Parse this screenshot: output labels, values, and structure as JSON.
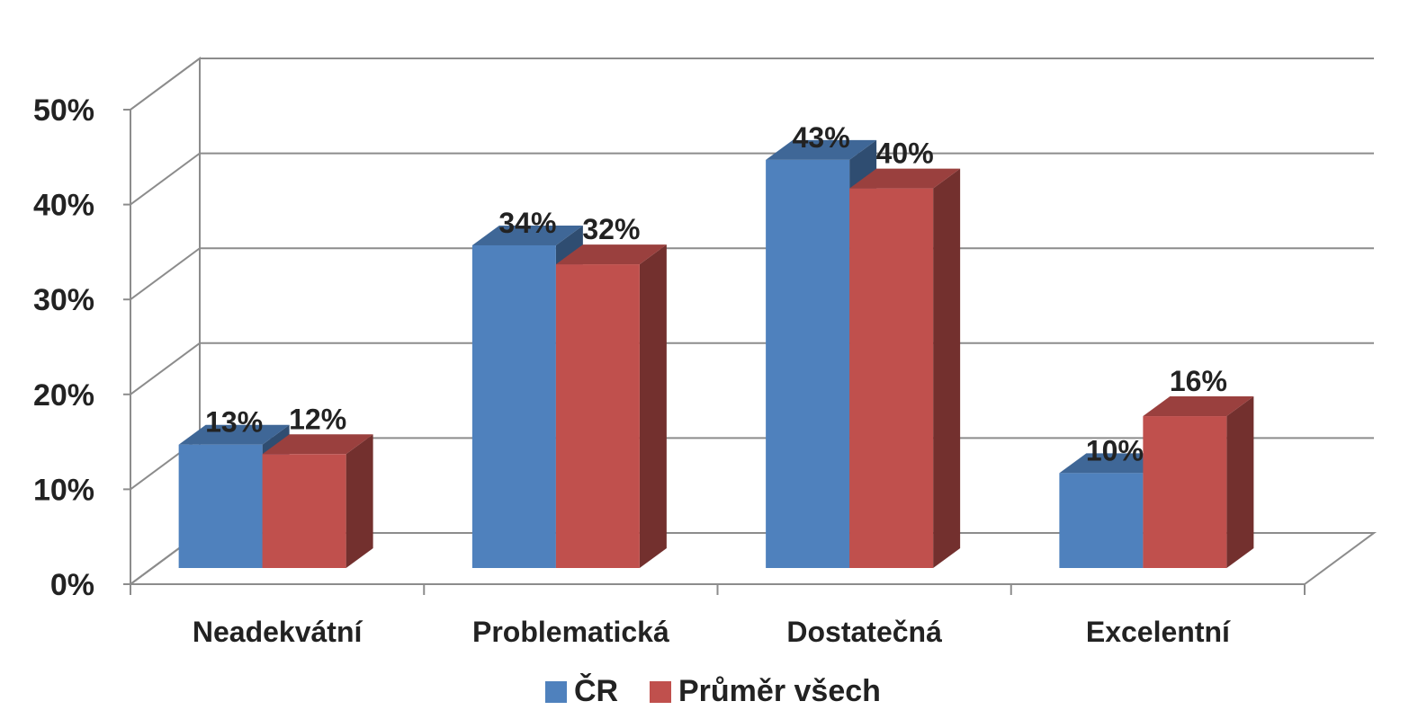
{
  "chart_data": {
    "type": "bar",
    "categories": [
      "Neadekvátní",
      "Problematická",
      "Dostatečná",
      "Excelentní"
    ],
    "series": [
      {
        "name": "ČR",
        "values": [
          13,
          34,
          43,
          10
        ],
        "labels": [
          "13%",
          "34%",
          "43%",
          "10%"
        ],
        "color": "#4f81bd"
      },
      {
        "name": "Průměr všech",
        "values": [
          12,
          32,
          40,
          16
        ],
        "labels": [
          "12%",
          "32%",
          "40%",
          "16%"
        ],
        "color": "#c0504d"
      }
    ],
    "ylim": [
      0,
      50
    ],
    "yticks": [
      "0%",
      "10%",
      "20%",
      "30%",
      "40%",
      "50%"
    ],
    "grid": true,
    "legend": "bottom",
    "style": "3d-clustered-column"
  }
}
